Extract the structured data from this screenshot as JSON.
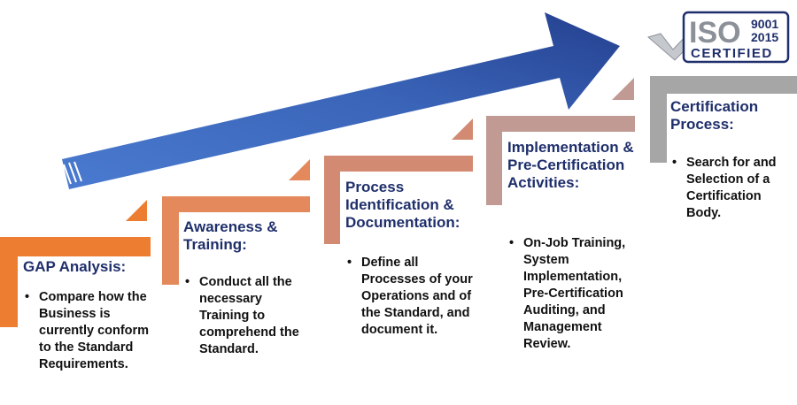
{
  "badge": {
    "iso": "ISO",
    "version": "9001",
    "year": "2015",
    "certified": "CERTIFIED"
  },
  "steps": [
    {
      "title": "GAP Analysis:",
      "bullets": [
        "Compare how the Business is currently conform to the Standard Requirements."
      ],
      "color": "#ed7d31"
    },
    {
      "title": "Awareness & Training:",
      "bullets": [
        "Conduct all the necessary Training to comprehend the Standard."
      ],
      "color": "#e3895c"
    },
    {
      "title": "Process Identification & Documentation:",
      "bullets": [
        "Define all Processes of your Operations and of the Standard, and document it."
      ],
      "color": "#d38a72"
    },
    {
      "title": "Implementation & Pre-Certification Activities:",
      "bullets": [
        "On-Job Training, System Implementation, Pre-Certification Auditing, and Management Review."
      ],
      "color": "#c09a93"
    },
    {
      "title": "Certification Process:",
      "bullets": [
        "Search for and Selection of a Certification Body."
      ],
      "color": "#a6a6a6"
    }
  ],
  "colors": {
    "arrow_start": "#4a7bd0",
    "arrow_end": "#25408f",
    "title_text": "#1f2f6b",
    "badge_gray": "#8c9199",
    "badge_navy": "#1f2f6b"
  }
}
